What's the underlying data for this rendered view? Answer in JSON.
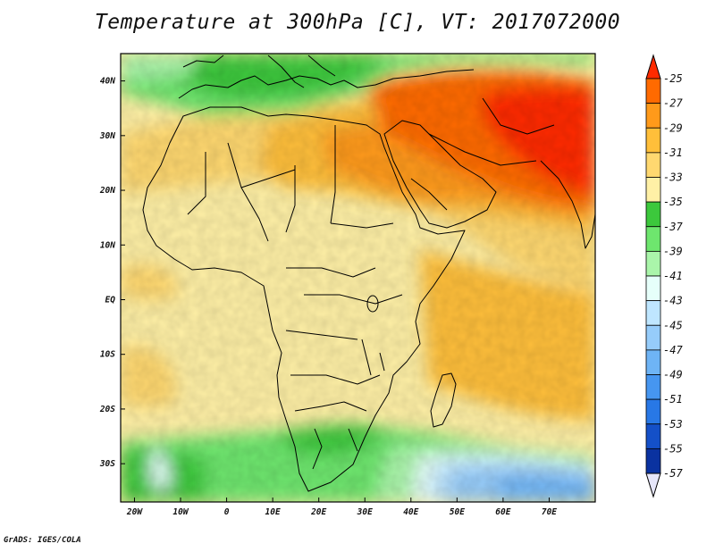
{
  "title": "Temperature at 300hPa [C], VT: 2017072000",
  "footer": "GrADS: IGES/COLA",
  "colors": {
    "frame": "#000000",
    "coastline": "#000000",
    "colorbar_fill": [
      "#ff2a00",
      "#ff6a00",
      "#ff9a1a",
      "#ffbf3a",
      "#ffd870",
      "#fff0a6",
      "#3cc83c",
      "#6ee66e",
      "#aaf5aa",
      "#e6fffa",
      "#bfe6ff",
      "#96ccfa",
      "#6eb4f5",
      "#4696f0",
      "#2878e6",
      "#1450c8",
      "#0a32a0",
      "#000a6e",
      "#e6e6fa"
    ]
  },
  "map": {
    "lon_range": [
      -23,
      80
    ],
    "lat_range": [
      -37,
      45
    ],
    "lon_ticks": [
      {
        "label": "20W",
        "value": -20
      },
      {
        "label": "10W",
        "value": -10
      },
      {
        "label": "0",
        "value": 0
      },
      {
        "label": "10E",
        "value": 10
      },
      {
        "label": "20E",
        "value": 20
      },
      {
        "label": "30E",
        "value": 30
      },
      {
        "label": "40E",
        "value": 40
      },
      {
        "label": "50E",
        "value": 50
      },
      {
        "label": "60E",
        "value": 60
      },
      {
        "label": "70E",
        "value": 70
      }
    ],
    "lat_ticks": [
      {
        "label": "40N",
        "value": 40
      },
      {
        "label": "30N",
        "value": 30
      },
      {
        "label": "20N",
        "value": 20
      },
      {
        "label": "10N",
        "value": 10
      },
      {
        "label": "EQ",
        "value": 0
      },
      {
        "label": "10S",
        "value": -10
      },
      {
        "label": "20S",
        "value": -20
      },
      {
        "label": "30S",
        "value": -30
      }
    ]
  },
  "colorbar": {
    "labels": [
      "-25",
      "-27",
      "-29",
      "-31",
      "-33",
      "-35",
      "-37",
      "-39",
      "-41",
      "-43",
      "-45",
      "-47",
      "-49",
      "-51",
      "-53",
      "-55",
      "-57"
    ]
  }
}
